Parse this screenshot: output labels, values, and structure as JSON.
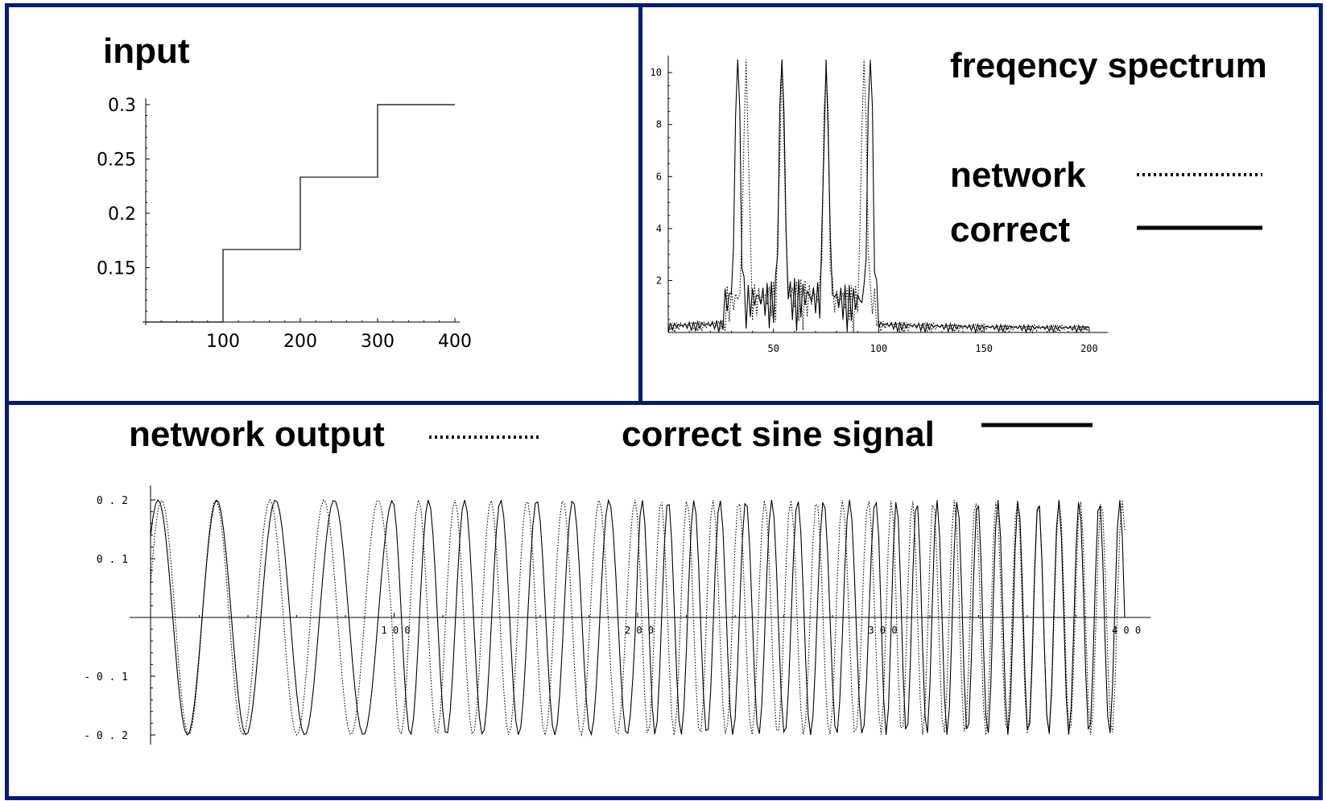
{
  "chart_data": [
    {
      "type": "line",
      "title": "input",
      "xlabel": "",
      "ylabel": "",
      "xlim": [
        0,
        400
      ],
      "ylim": [
        0.1,
        0.3
      ],
      "xticks": [
        "100",
        "200",
        "300",
        "400"
      ],
      "yticks": [
        "0.3",
        "0.25",
        "0.2",
        "0.15"
      ],
      "ytick_values": [
        0.3,
        0.25,
        0.2,
        0.15
      ],
      "series": [
        {
          "style": "solid",
          "x": [
            0,
            100,
            100,
            200,
            200,
            300,
            300,
            400
          ],
          "y": [
            0.1,
            0.1,
            0.1667,
            0.1667,
            0.2333,
            0.2333,
            0.3,
            0.3
          ]
        }
      ]
    },
    {
      "type": "line",
      "title": "freqency spectrum",
      "xlim": [
        0,
        205
      ],
      "ylim": [
        0,
        10.5
      ],
      "xticks": [
        "50",
        "100",
        "150",
        "200"
      ],
      "xtick_values": [
        50,
        100,
        150,
        200
      ],
      "yticks": [
        "2",
        "4",
        "6",
        "8",
        "10"
      ],
      "ytick_values": [
        2,
        4,
        6,
        8,
        10
      ],
      "legend": [
        {
          "label": "network",
          "style": "dotted"
        },
        {
          "label": "correct",
          "style": "solid"
        }
      ],
      "series": [
        {
          "name": "correct",
          "style": "solid",
          "peaks": [
            33,
            54,
            75,
            96
          ],
          "peak_heights": [
            10.1,
            10.4,
            10.1,
            10.2
          ]
        },
        {
          "name": "network",
          "style": "dotted",
          "peaks": [
            37,
            54,
            75,
            93
          ],
          "peak_heights": [
            10.1,
            9.3,
            9.8,
            10.2
          ]
        }
      ]
    },
    {
      "type": "line",
      "xlim": [
        0,
        400
      ],
      "ylim": [
        -0.2,
        0.2
      ],
      "xticks": [
        "1 0 0",
        "2 0 0",
        "3 0 0",
        "4 0 0"
      ],
      "xtick_values": [
        100,
        200,
        300,
        400
      ],
      "yticks": [
        "0 . 2",
        "0 . 1",
        "- 0 . 1",
        "- 0 . 2"
      ],
      "ytick_values": [
        0.2,
        0.1,
        -0.1,
        -0.2
      ],
      "legend": [
        {
          "label": "network output",
          "style": "dotted"
        },
        {
          "label": "correct sine signal",
          "style": "solid"
        }
      ],
      "series": [
        {
          "name": "correct sine signal",
          "style": "solid",
          "amplitude": 0.2,
          "frequency_steps": [
            0.083,
            0.135,
            0.188,
            0.24
          ]
        },
        {
          "name": "network output",
          "style": "dotted",
          "amplitude": 0.2,
          "frequency_steps": [
            0.09,
            0.135,
            0.188,
            0.232
          ]
        }
      ]
    }
  ]
}
